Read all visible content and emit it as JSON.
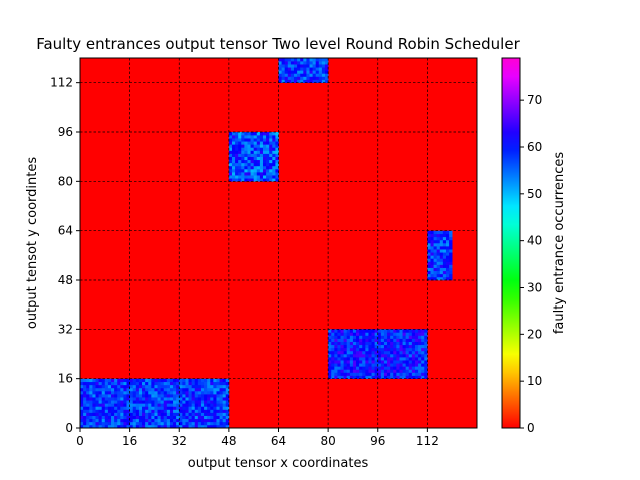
{
  "chart_data": {
    "type": "heatmap",
    "title": "Faulty entrances output tensor Two level Round Robin Scheduler",
    "xlabel": "output tensor x coordinates",
    "ylabel": "output tensot y coordintes",
    "xlim": [
      0,
      128
    ],
    "ylim": [
      0,
      120
    ],
    "x_ticks": [
      0,
      16,
      32,
      48,
      64,
      80,
      96,
      112
    ],
    "y_ticks": [
      0,
      16,
      32,
      48,
      64,
      80,
      96,
      112
    ],
    "grid": true,
    "colormap": "gist_rainbow_r",
    "background_value": 0,
    "colorbar": {
      "label": "faulty entrance occurrences",
      "range": [
        0,
        79
      ],
      "ticks": [
        0,
        10,
        20,
        30,
        40,
        50,
        60,
        70
      ]
    },
    "regions": [
      {
        "x": [
          0,
          48
        ],
        "y": [
          0,
          16
        ],
        "value_range": [
          52,
          64
        ]
      },
      {
        "x": [
          80,
          112
        ],
        "y": [
          16,
          32
        ],
        "value_range": [
          54,
          66
        ]
      },
      {
        "x": [
          112,
          120
        ],
        "y": [
          48,
          64
        ],
        "value_range": [
          52,
          64
        ]
      },
      {
        "x": [
          48,
          64
        ],
        "y": [
          80,
          96
        ],
        "value_range": [
          50,
          64
        ]
      },
      {
        "x": [
          64,
          80
        ],
        "y": [
          112,
          120
        ],
        "value_range": [
          52,
          64
        ]
      }
    ]
  }
}
